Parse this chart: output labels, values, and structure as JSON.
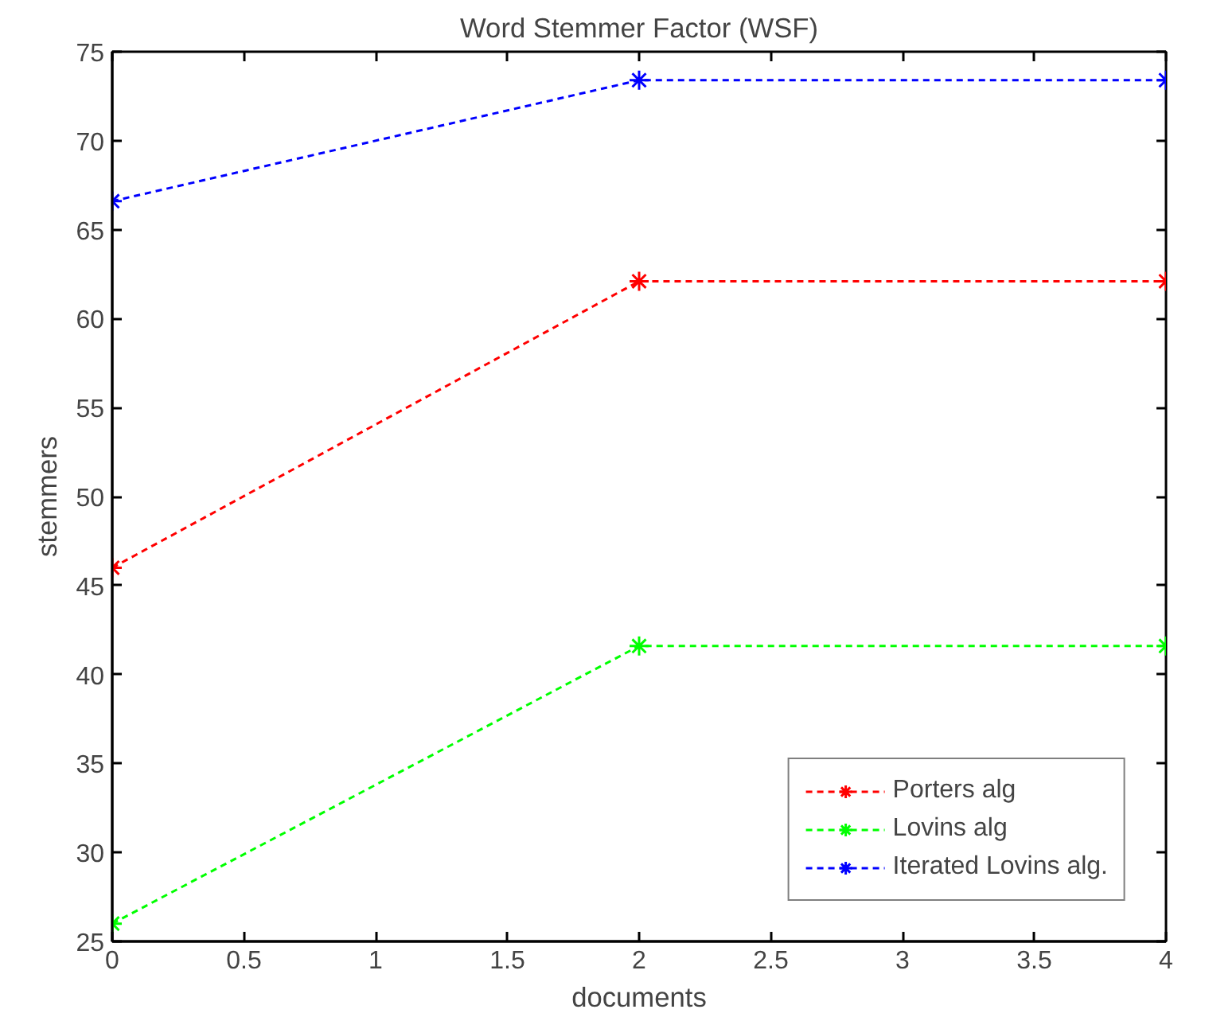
{
  "chart_data": {
    "type": "line",
    "title": "Word Stemmer Factor (WSF)",
    "xlabel": "documents",
    "ylabel": "stemmers",
    "x": [
      0,
      2,
      4
    ],
    "series": [
      {
        "name": "Porters alg",
        "color": "#ff0000",
        "values": [
          46,
          62.1,
          62.1
        ]
      },
      {
        "name": "Lovins alg",
        "color": "#00ff00",
        "values": [
          26,
          41.6,
          41.6
        ]
      },
      {
        "name": "Iterated Lovins alg.",
        "color": "#0000ff",
        "values": [
          66.6,
          73.4,
          73.4
        ]
      }
    ],
    "xlim": [
      0,
      4
    ],
    "ylim": [
      25,
      75
    ],
    "xticks": [
      0,
      0.5,
      1,
      1.5,
      2,
      2.5,
      3,
      3.5,
      4
    ],
    "yticks": [
      25,
      30,
      35,
      40,
      45,
      50,
      55,
      60,
      65,
      70,
      75
    ],
    "grid": false,
    "legend": "bottom right",
    "marker": "cross",
    "line_style": "dashed"
  }
}
